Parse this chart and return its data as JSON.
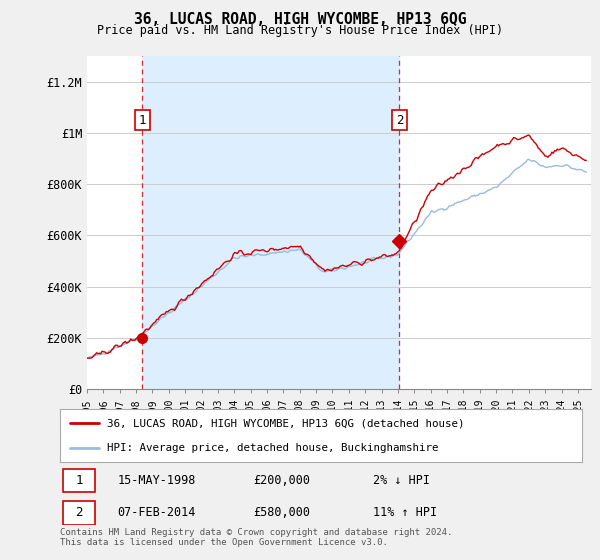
{
  "title": "36, LUCAS ROAD, HIGH WYCOMBE, HP13 6QG",
  "subtitle": "Price paid vs. HM Land Registry's House Price Index (HPI)",
  "property_label": "36, LUCAS ROAD, HIGH WYCOMBE, HP13 6QG (detached house)",
  "hpi_label": "HPI: Average price, detached house, Buckinghamshire",
  "transaction1_date": "15-MAY-1998",
  "transaction1_price": 200000,
  "transaction1_pct": "2% ↓ HPI",
  "transaction2_date": "07-FEB-2014",
  "transaction2_price": 580000,
  "transaction2_pct": "11% ↑ HPI",
  "footer": "Contains HM Land Registry data © Crown copyright and database right 2024.\nThis data is licensed under the Open Government Licence v3.0.",
  "property_color": "#cc0000",
  "hpi_color": "#99bbdd",
  "shade_color": "#ddeeff",
  "bg_color": "#f0f0f0",
  "plot_bg_color": "#ffffff",
  "grid_color": "#cccccc",
  "dashed_line_color": "#cc0000",
  "ylim": [
    0,
    1300000
  ],
  "yticks": [
    0,
    200000,
    400000,
    600000,
    800000,
    1000000,
    1200000
  ],
  "ytick_labels": [
    "£0",
    "£200K",
    "£400K",
    "£600K",
    "£800K",
    "£1M",
    "£1.2M"
  ],
  "x_start_year": 1995,
  "x_end_year": 2025,
  "t1_year_float": 1998.37,
  "t2_year_float": 2014.09
}
